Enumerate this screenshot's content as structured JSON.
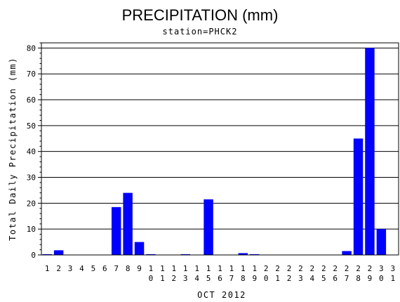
{
  "chart_data": {
    "type": "bar",
    "title": "PRECIPITATION (mm)",
    "subtitle": "station=PHCK2",
    "xlabel": "OCT 2012",
    "ylabel": "Total Daily Precipitation (mm)",
    "ylim": [
      0,
      82
    ],
    "yticks": [
      0,
      10,
      20,
      30,
      40,
      50,
      60,
      70,
      80
    ],
    "grid": true,
    "bar_color": "#0000ff",
    "categories": [
      "1",
      "2",
      "3",
      "4",
      "5",
      "6",
      "7",
      "8",
      "9",
      "10",
      "11",
      "12",
      "13",
      "14",
      "15",
      "16",
      "17",
      "18",
      "19",
      "20",
      "21",
      "22",
      "23",
      "24",
      "25",
      "26",
      "27",
      "28",
      "29",
      "30",
      "31"
    ],
    "values": [
      0.3,
      1.8,
      0,
      0,
      0,
      0,
      18.5,
      24,
      5,
      0.3,
      0,
      0,
      0.3,
      0,
      21.5,
      0,
      0,
      0.7,
      0.3,
      0,
      0,
      0,
      0,
      0,
      0,
      0,
      1.5,
      45,
      80,
      10,
      0
    ]
  }
}
